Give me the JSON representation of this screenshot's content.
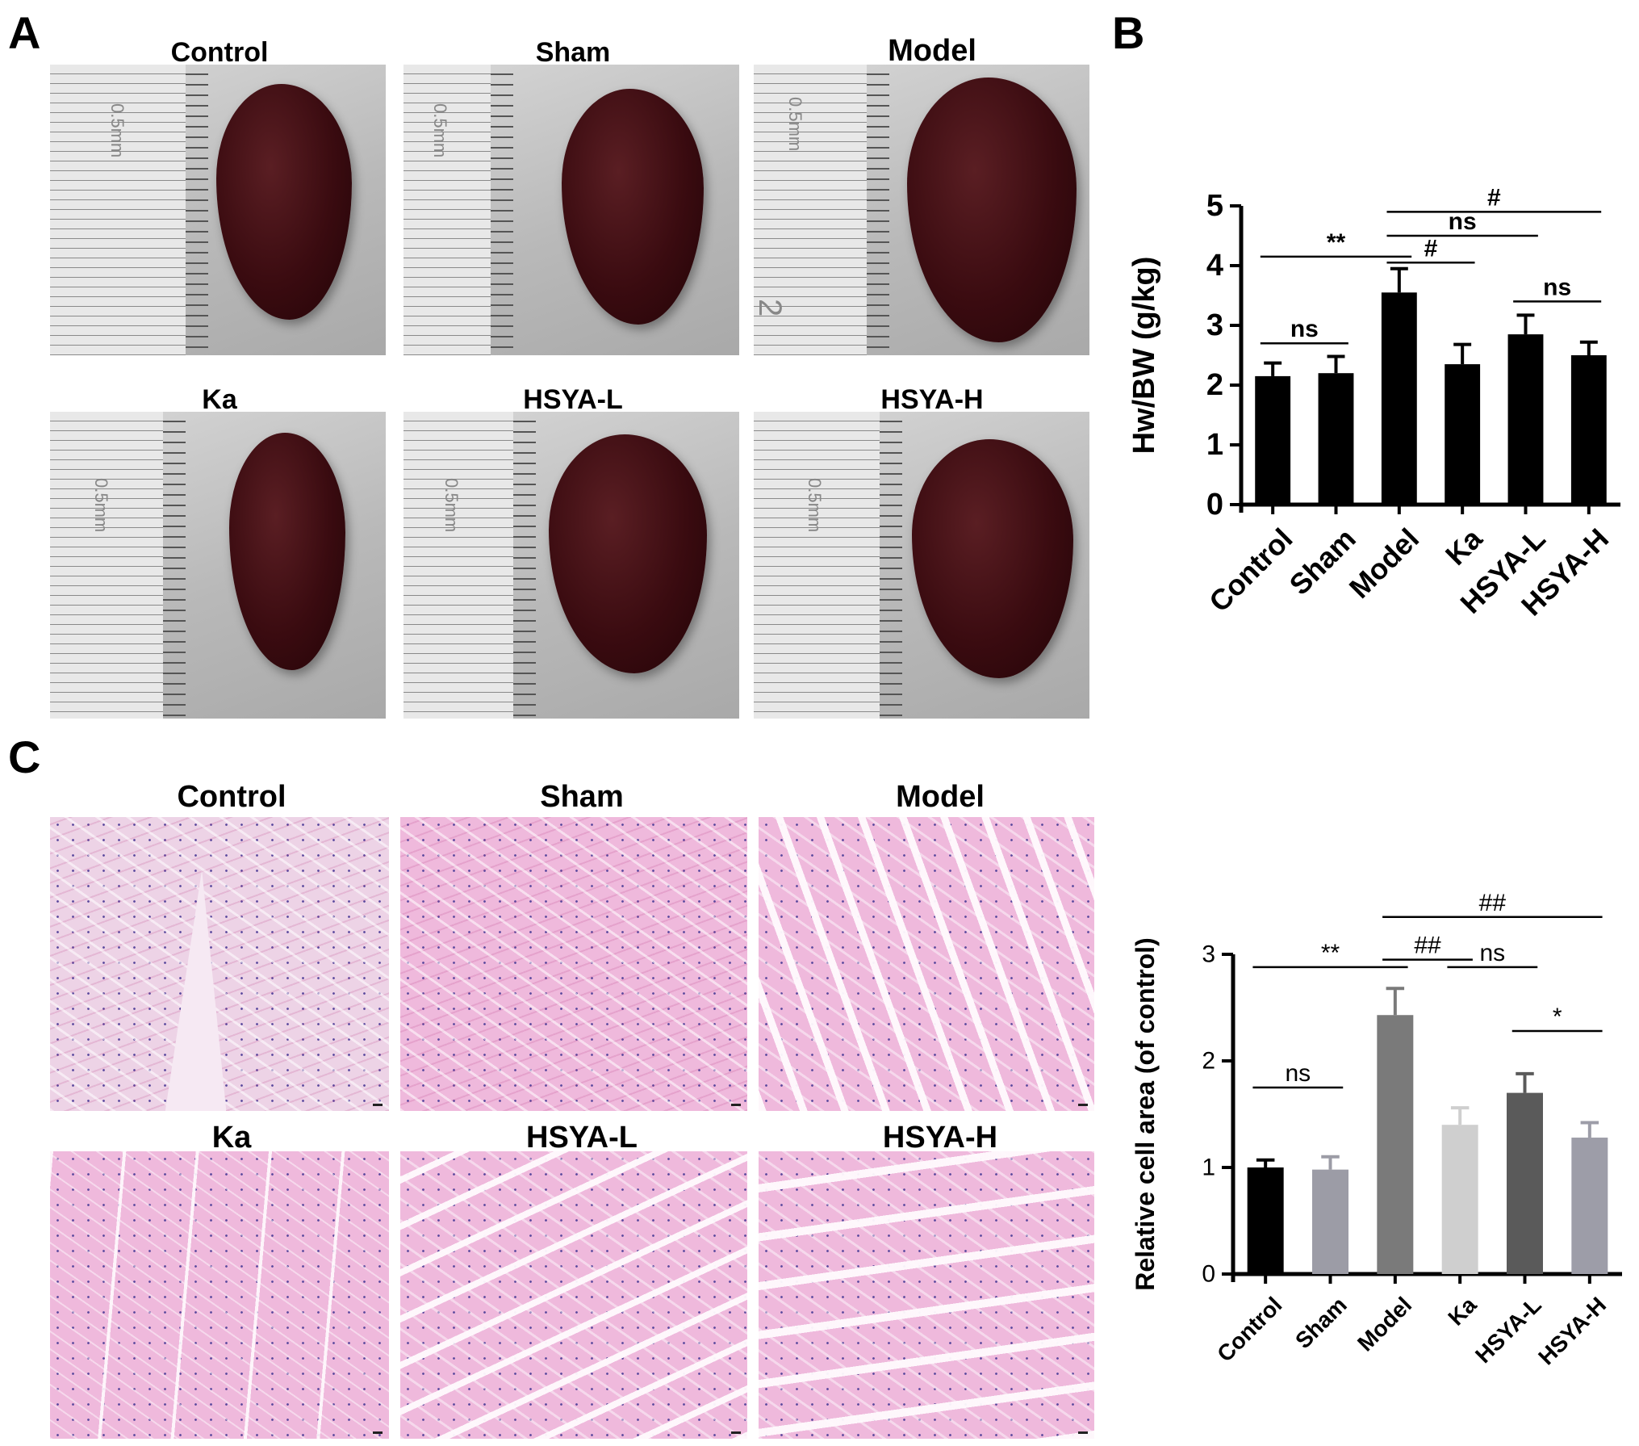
{
  "panels": {
    "a": "A",
    "b": "B",
    "c": "C"
  },
  "panel_a": {
    "groups": [
      "Control",
      "Sham",
      "Model",
      "Ka",
      "HSYA-L",
      "HSYA-H"
    ],
    "ruler_label": "0.5mm",
    "ruler_number": "2"
  },
  "panel_c": {
    "groups": [
      "Control",
      "Sham",
      "Model",
      "Ka",
      "HSYA-L",
      "HSYA-H"
    ]
  },
  "chart_data": [
    {
      "type": "bar",
      "panel": "B",
      "categories": [
        "Control",
        "Sham",
        "Model",
        "Ka",
        "HSYA-L",
        "HSYA-H"
      ],
      "values": [
        2.15,
        2.2,
        3.55,
        2.35,
        2.85,
        2.5
      ],
      "errors": [
        0.22,
        0.28,
        0.4,
        0.33,
        0.32,
        0.22
      ],
      "bar_colors": [
        "#000000",
        "#000000",
        "#000000",
        "#000000",
        "#000000",
        "#000000"
      ],
      "ylabel": "Hw/BW (g/kg)",
      "ylim": [
        0,
        5
      ],
      "yticks": [
        0,
        1,
        2,
        3,
        4,
        5
      ],
      "annotations": [
        {
          "from": "Control",
          "to": "Sham",
          "label": "ns",
          "y": 2.7
        },
        {
          "from": "Control",
          "to": "Model",
          "label": "**",
          "y": 4.15
        },
        {
          "from": "Model",
          "to": "Ka",
          "label": "#",
          "y": 4.05
        },
        {
          "from": "Model",
          "to": "HSYA-L",
          "label": "ns",
          "y": 4.5
        },
        {
          "from": "Model",
          "to": "HSYA-H",
          "label": "#",
          "y": 4.9
        },
        {
          "from": "HSYA-L",
          "to": "HSYA-H",
          "label": "ns",
          "y": 3.4
        }
      ],
      "grid": false
    },
    {
      "type": "bar",
      "panel": "C",
      "categories": [
        "Control",
        "Sham",
        "Model",
        "Ka",
        "HSYA-L",
        "HSYA-H"
      ],
      "values": [
        1.0,
        0.98,
        2.43,
        1.4,
        1.7,
        1.28
      ],
      "errors": [
        0.07,
        0.12,
        0.25,
        0.16,
        0.18,
        0.14
      ],
      "bar_colors": [
        "#000000",
        "#9c9ca6",
        "#7a7a7a",
        "#cfcfcf",
        "#5a5a5a",
        "#9d9da8"
      ],
      "ylabel": "Relative cell area (of control)",
      "ylim": [
        0,
        3
      ],
      "yticks": [
        0,
        1,
        2,
        3
      ],
      "annotations": [
        {
          "from": "Control",
          "to": "Sham",
          "label": "ns",
          "y": 1.75
        },
        {
          "from": "Control",
          "to": "Model",
          "label": "**",
          "y": 2.88
        },
        {
          "from": "Model",
          "to": "Ka",
          "label": "##",
          "y": 2.95
        },
        {
          "from": "Ka",
          "to": "HSYA-L",
          "label": "ns",
          "y": 2.88
        },
        {
          "from": "Model",
          "to": "HSYA-H",
          "label": "##",
          "y": 3.35
        },
        {
          "from": "HSYA-L",
          "to": "HSYA-H",
          "label": "*",
          "y": 2.28
        }
      ],
      "grid": false
    }
  ]
}
